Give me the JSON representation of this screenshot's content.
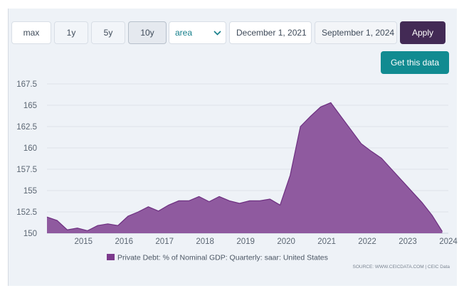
{
  "controls": {
    "range_buttons": [
      "max",
      "1y",
      "5y",
      "10y"
    ],
    "active_range": "10y",
    "chart_type_select": "area",
    "start_date": "December 1, 2021",
    "end_date": "September 1, 2024",
    "apply_label": "Apply",
    "get_data_label": "Get this data"
  },
  "colors": {
    "area_fill": "#8f5a9f",
    "area_stroke": "#6d2f80",
    "apply_bg": "#432a55",
    "get_data_bg": "#118b91",
    "select_text": "#147e8a"
  },
  "icons": {
    "select_caret": "chevron-down-icon"
  },
  "chart_data": {
    "type": "area",
    "title": "",
    "xlabel": "",
    "ylabel": "",
    "ylim": [
      150,
      168.5
    ],
    "xlim": [
      2014.1,
      2024.0
    ],
    "y_ticks": [
      "150",
      "152.5",
      "155",
      "157.5",
      "160",
      "162.5",
      "165",
      "167.5"
    ],
    "x_ticks": [
      "2015",
      "2016",
      "2017",
      "2018",
      "2019",
      "2020",
      "2021",
      "2022",
      "2023",
      "2024"
    ],
    "legend_position": "bottom-center",
    "series": [
      {
        "name": "Private Debt: % of Nominal GDP: Quarterly: saar: United States",
        "x": [
          2014.1,
          2014.35,
          2014.6,
          2014.85,
          2015.1,
          2015.35,
          2015.6,
          2015.85,
          2016.1,
          2016.35,
          2016.6,
          2016.85,
          2017.1,
          2017.35,
          2017.6,
          2017.85,
          2018.1,
          2018.35,
          2018.6,
          2018.85,
          2019.1,
          2019.35,
          2019.6,
          2019.85,
          2020.1,
          2020.35,
          2020.6,
          2020.85,
          2021.1,
          2021.35,
          2021.6,
          2021.85,
          2022.1,
          2022.35,
          2022.6,
          2022.85,
          2023.1,
          2023.35,
          2023.6,
          2023.85
        ],
        "values": [
          151.9,
          151.5,
          150.4,
          150.6,
          150.3,
          150.9,
          151.1,
          150.9,
          152.0,
          152.5,
          153.1,
          152.6,
          153.3,
          153.8,
          153.8,
          154.3,
          153.7,
          154.3,
          153.8,
          153.5,
          153.8,
          153.8,
          154.0,
          153.3,
          156.8,
          162.5,
          163.7,
          164.8,
          165.3,
          163.7,
          162.1,
          160.5,
          159.6,
          158.8,
          157.5,
          156.2,
          154.9,
          153.6,
          152.1,
          150.2
        ]
      }
    ],
    "source_note": "SOURCE: WWW.CEICDATA.COM | CEIC Data"
  }
}
